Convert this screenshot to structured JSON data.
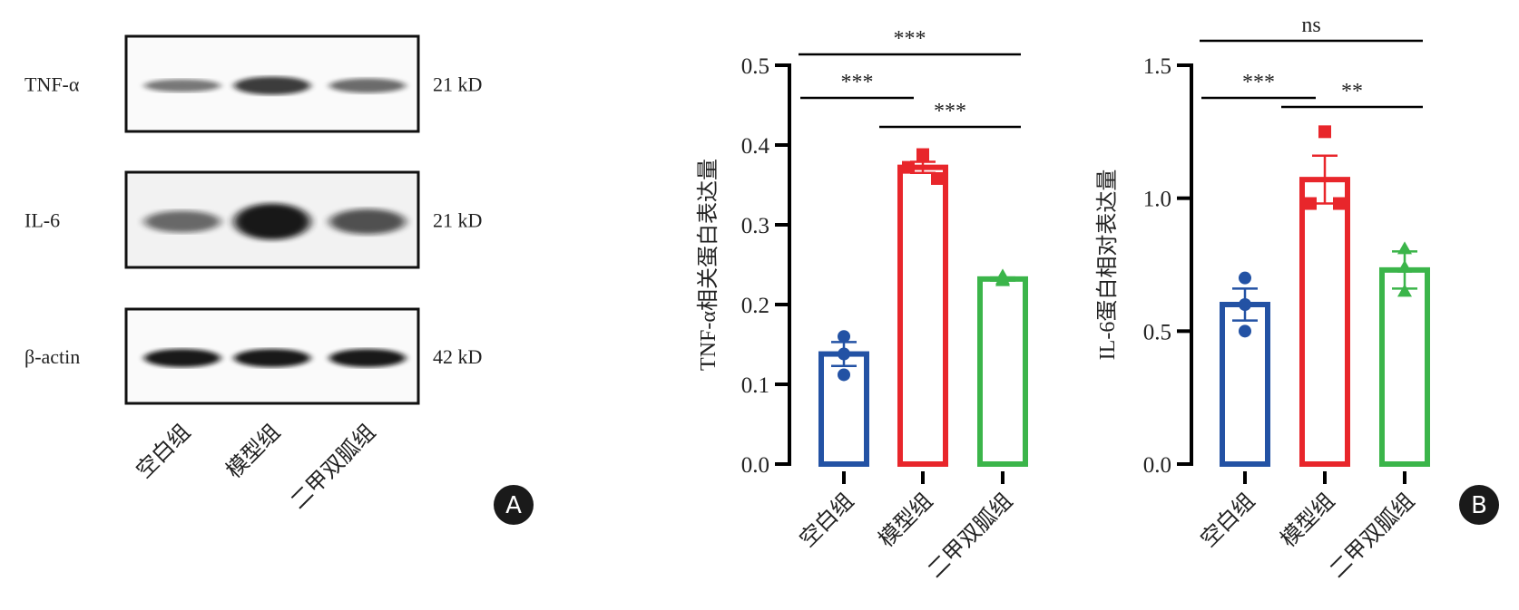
{
  "panel_a": {
    "label": "A",
    "rows": [
      {
        "protein": "TNF-α",
        "size": "21 kD"
      },
      {
        "protein": "IL-6",
        "size": "21 kD"
      },
      {
        "protein": "β-actin",
        "size": "42 kD"
      }
    ],
    "lanes": [
      "空白组",
      "模型组",
      "二甲双胍组"
    ]
  },
  "panel_b": {
    "label": "B"
  },
  "colors": {
    "blank": "#2352a4",
    "model": "#e8262b",
    "drug": "#3bb54a"
  },
  "chart_data": [
    {
      "type": "bar",
      "title": "",
      "xlabel": "",
      "ylabel": "TNF-α相关蛋白表达量",
      "categories": [
        "空白组",
        "模型组",
        "二甲双胍组"
      ],
      "values": [
        0.138,
        0.372,
        0.232
      ],
      "sem": [
        0.015,
        0.007,
        0.002
      ],
      "points": [
        [
          0.16,
          0.138,
          0.112
        ],
        [
          0.388,
          0.372,
          0.358
        ],
        [
          0.236,
          0.232,
          0.23
        ]
      ],
      "markers": [
        "circle",
        "square",
        "triangle"
      ],
      "ylim": [
        0,
        0.5
      ],
      "yticks": [
        "0.0",
        "0.1",
        "0.2",
        "0.3",
        "0.4",
        "0.5"
      ],
      "significance": [
        {
          "from": 0,
          "to": 2,
          "label": "***",
          "level": 0
        },
        {
          "from": 0,
          "to": 1,
          "label": "***",
          "level": 1
        },
        {
          "from": 1,
          "to": 2,
          "label": "***",
          "level": 2
        }
      ]
    },
    {
      "type": "bar",
      "title": "",
      "xlabel": "",
      "ylabel": "IL-6蛋白相对表达量",
      "categories": [
        "空白组",
        "模型组",
        "二甲双胍组"
      ],
      "values": [
        0.6,
        1.07,
        0.73
      ],
      "sem": [
        0.06,
        0.09,
        0.07
      ],
      "points": [
        [
          0.7,
          0.6,
          0.5
        ],
        [
          1.25,
          0.98,
          0.98
        ],
        [
          0.81,
          0.74,
          0.65
        ]
      ],
      "markers": [
        "circle",
        "square",
        "triangle"
      ],
      "ylim": [
        0,
        1.5
      ],
      "yticks": [
        "0.0",
        "0.5",
        "1.0",
        "1.5"
      ],
      "significance": [
        {
          "from": 0,
          "to": 2,
          "label": "ns",
          "level": 0
        },
        {
          "from": 1,
          "to": 2,
          "label": "**",
          "level": 1
        },
        {
          "from": 0,
          "to": 1,
          "label": "***",
          "level": 2
        }
      ]
    }
  ]
}
